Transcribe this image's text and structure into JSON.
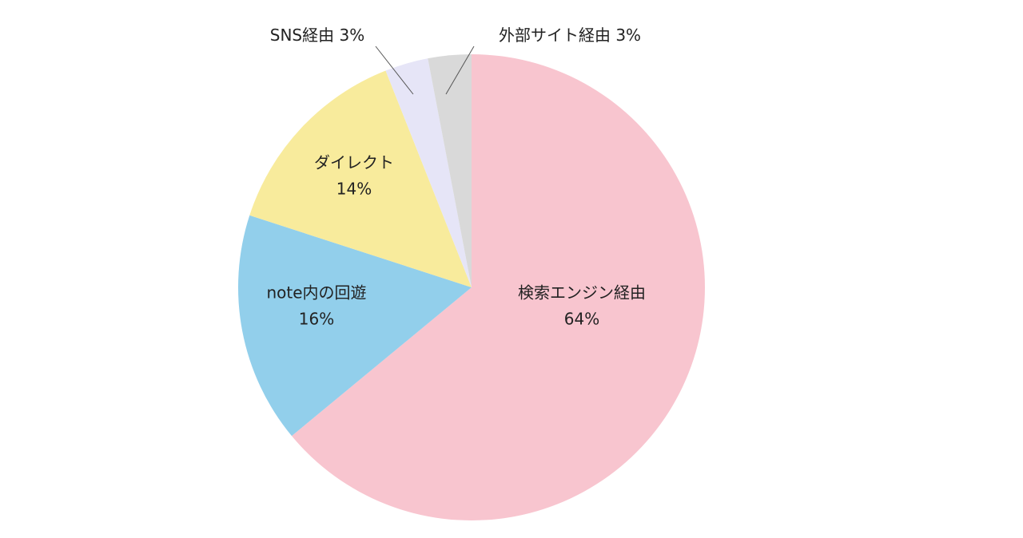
{
  "chart_data": {
    "type": "pie",
    "categories": [
      "検索エンジン経由",
      "note内の回遊",
      "ダイレクト",
      "SNS経由",
      "外部サイト経由"
    ],
    "values": [
      64,
      16,
      14,
      3,
      3
    ],
    "value_labels": [
      "64%",
      "16%",
      "14%",
      "3%",
      "3%"
    ],
    "colors": [
      "#f8c5cf",
      "#92cfeb",
      "#f8eb9c",
      "#e6e5f7",
      "#d9d9d9"
    ]
  }
}
